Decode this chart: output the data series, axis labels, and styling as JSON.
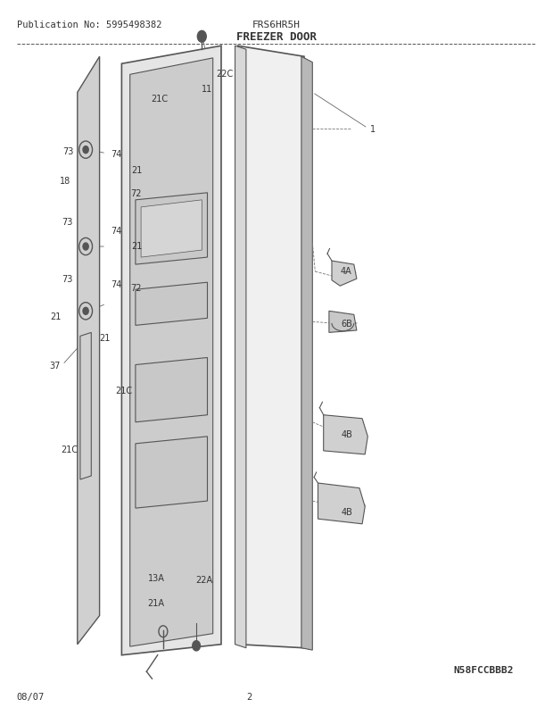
{
  "title": "FREEZER DOOR",
  "pub_no": "Publication No: 5995498382",
  "model": "FRS6HR5H",
  "date": "08/07",
  "page": "2",
  "diagram_code": "N58FCCBBB2",
  "bg_color": "#ffffff",
  "line_color": "#555555",
  "text_color": "#333333"
}
